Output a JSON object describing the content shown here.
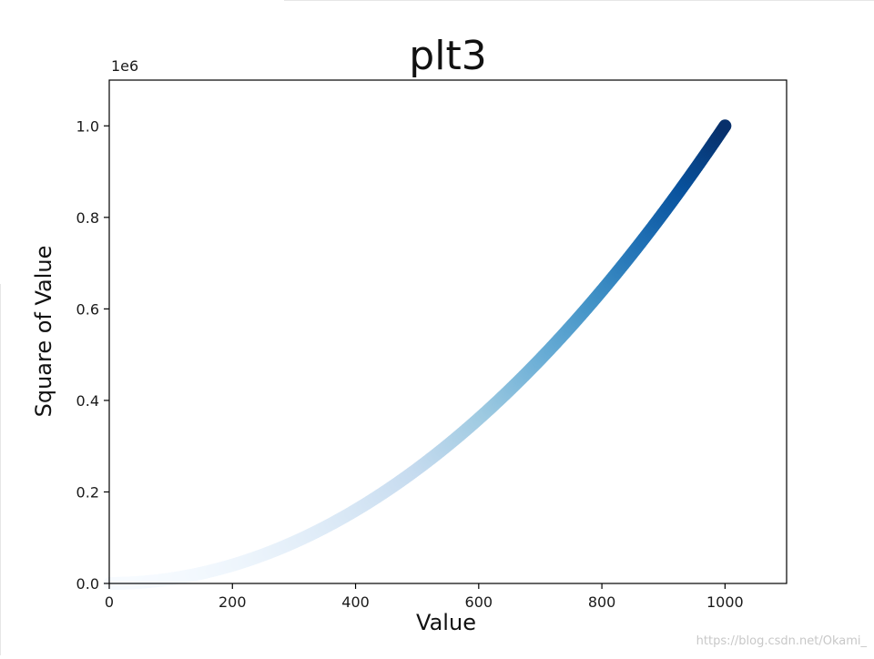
{
  "chart_data": {
    "type": "scatter",
    "title": "plt3",
    "xlabel": "Value",
    "ylabel": "Square of Value",
    "y_offset_label": "1e6",
    "xlim": [
      0,
      1100
    ],
    "ylim": [
      0,
      1100000
    ],
    "x_ticks": [
      0,
      200,
      400,
      600,
      800,
      1000
    ],
    "x_tick_labels": [
      "0",
      "200",
      "400",
      "600",
      "800",
      "1000"
    ],
    "y_ticks": [
      0,
      200000,
      400000,
      600000,
      800000,
      1000000
    ],
    "y_tick_labels": [
      "0.0",
      "0.2",
      "0.4",
      "0.6",
      "0.8",
      "1.0"
    ],
    "series": [
      {
        "x_range": [
          1,
          1000
        ],
        "formula": "y = x^2",
        "colormap": "Blues"
      }
    ],
    "colormap_stops": [
      "#f7fbff",
      "#deebf7",
      "#c6dbef",
      "#9ecae1",
      "#6baed6",
      "#4292c6",
      "#2171b5",
      "#08519c",
      "#08306b"
    ],
    "grid": false,
    "legend": "none"
  },
  "watermark": "https://blog.csdn.net/Okami_"
}
